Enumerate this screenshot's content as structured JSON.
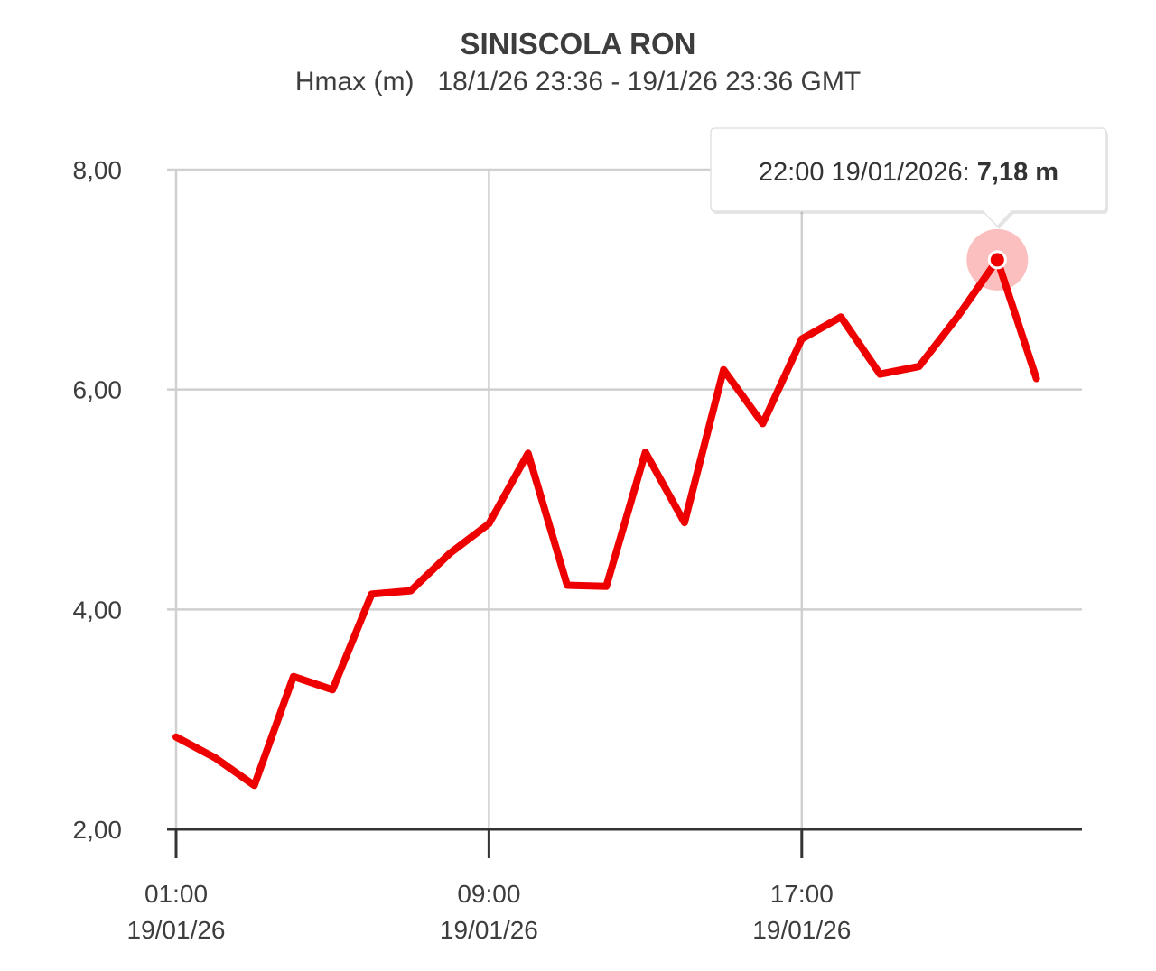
{
  "chart_data": {
    "type": "line",
    "title": "SINISCOLA RON",
    "subtitle_var": "Hmax (m)",
    "subtitle_range": "18/1/26 23:36 - 19/1/26 23:36 GMT",
    "xlabel": "",
    "ylabel": "",
    "ylim": [
      2,
      8
    ],
    "y_ticks": [
      "2,00",
      "4,00",
      "6,00",
      "8,00"
    ],
    "y_tick_values": [
      2,
      4,
      6,
      8
    ],
    "x_start": "01:00 19/01/26",
    "x_end": "23:00 19/01/26",
    "x_ticks": [
      {
        "value": "01:00 19/01/26",
        "time": "01:00",
        "date": "19/01/26"
      },
      {
        "value": "09:00 19/01/26",
        "time": "09:00",
        "date": "19/01/26"
      },
      {
        "value": "17:00 19/01/26",
        "time": "17:00",
        "date": "19/01/26"
      }
    ],
    "grid": true,
    "series": [
      {
        "color": "#ee0000",
        "x": [
          "01:00 19/01/26",
          "02:00 19/01/26",
          "03:00 19/01/26",
          "04:00 19/01/26",
          "05:00 19/01/26",
          "06:00 19/01/26",
          "07:00 19/01/26",
          "08:00 19/01/26",
          "09:00 19/01/26",
          "10:00 19/01/26",
          "11:00 19/01/26",
          "12:00 19/01/26",
          "13:00 19/01/26",
          "14:00 19/01/26",
          "15:00 19/01/26",
          "16:00 19/01/26",
          "17:00 19/01/26",
          "18:00 19/01/26",
          "19:00 19/01/26",
          "20:00 19/01/26",
          "21:00 19/01/26",
          "22:00 19/01/26",
          "23:00 19/01/26"
        ],
        "values": [
          2.84,
          2.65,
          2.4,
          3.39,
          3.27,
          4.14,
          4.17,
          4.51,
          4.78,
          5.42,
          4.22,
          4.21,
          5.43,
          4.79,
          6.18,
          5.69,
          6.46,
          6.66,
          6.14,
          6.21,
          6.67,
          7.18,
          6.1
        ]
      }
    ],
    "tooltip": {
      "label": "22:00 19/01/2026: ",
      "value": "7,18 m",
      "point_index": 21
    }
  }
}
